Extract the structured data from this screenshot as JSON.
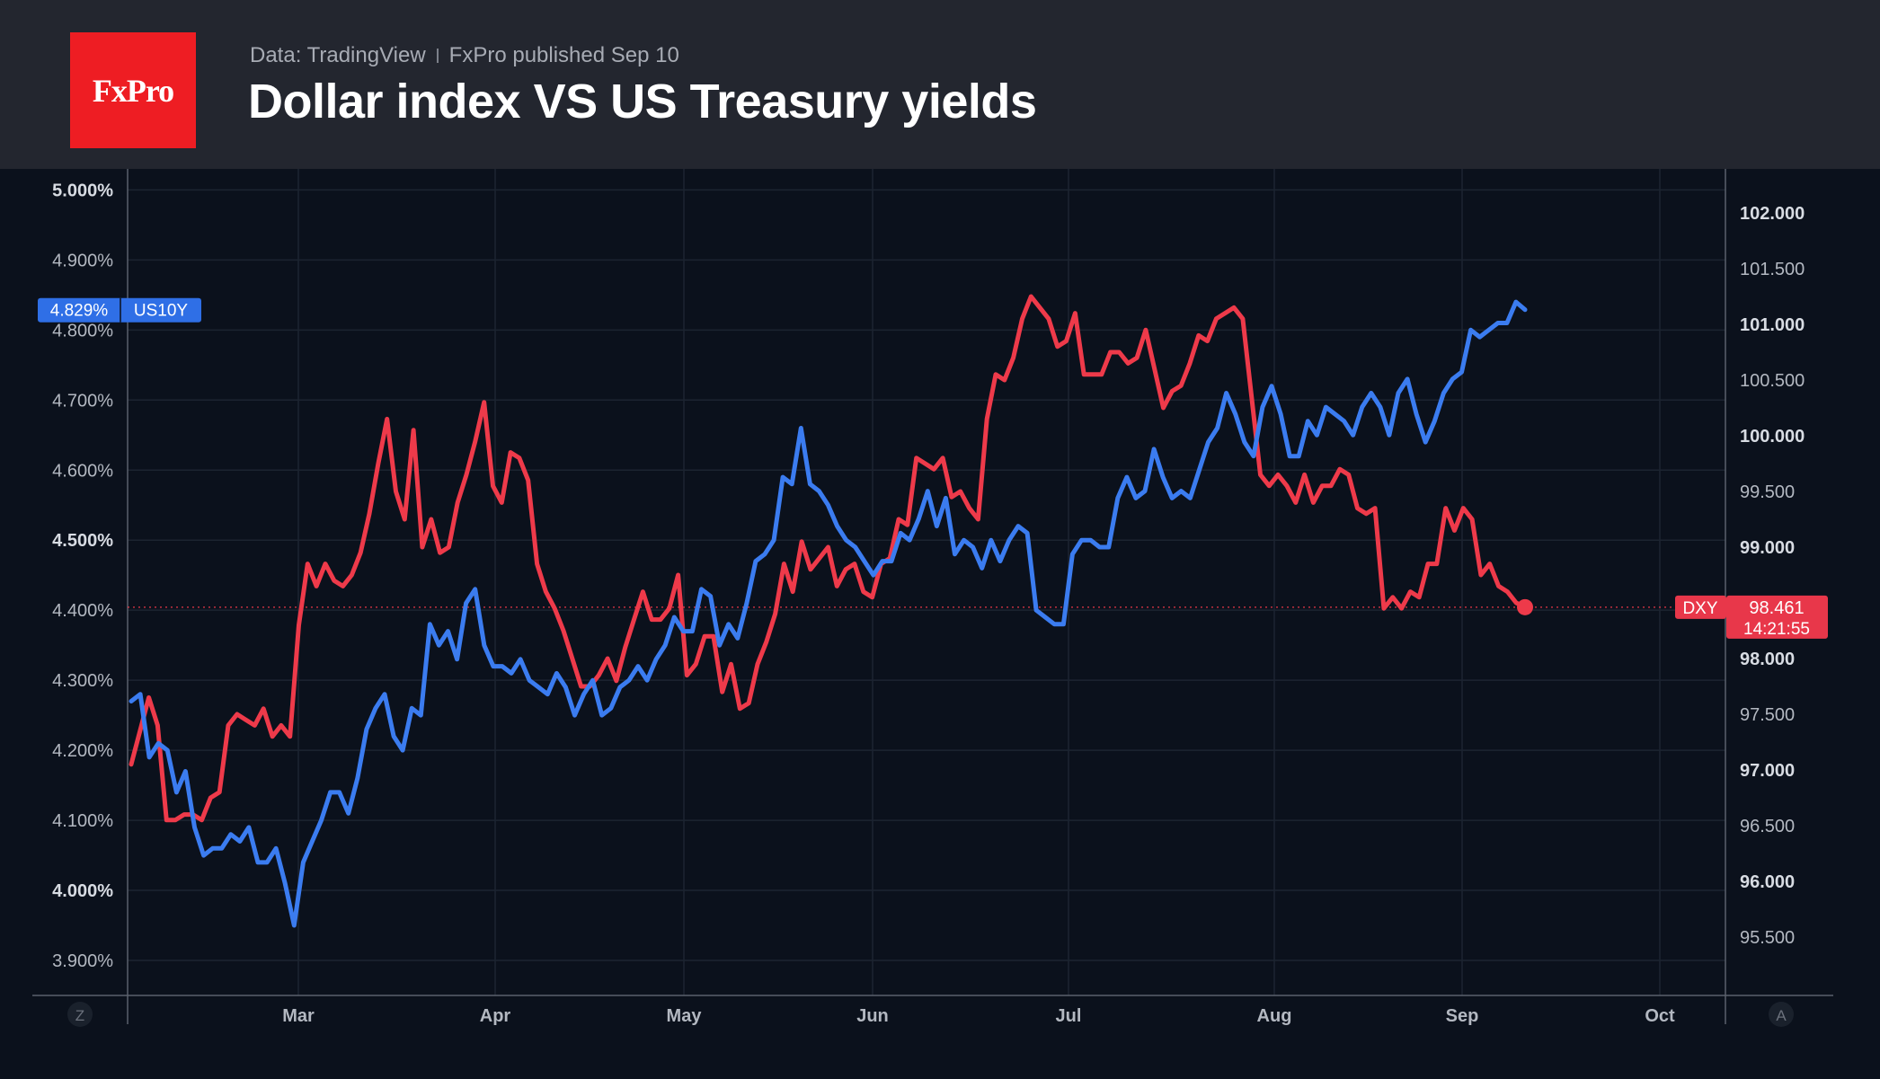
{
  "brand": {
    "logo_text": "FxPro",
    "logo_color": "#ee1d23"
  },
  "header": {
    "source": "Data: TradingView",
    "published": "FxPro published Sep 10",
    "title": "Dollar index VS US Treasury yields"
  },
  "chart_data": {
    "type": "line",
    "title": "Dollar index VS US Treasury yields",
    "x_labels": [
      "Mar",
      "Apr",
      "May",
      "Jun",
      "Jul",
      "Aug",
      "Sep",
      "Oct"
    ],
    "left_axis": {
      "ticks": [
        "5.000%",
        "4.900%",
        "4.800%",
        "4.700%",
        "4.600%",
        "4.500%",
        "4.400%",
        "4.300%",
        "4.200%",
        "4.100%",
        "4.000%",
        "3.900%"
      ],
      "range": [
        3.85,
        5.03
      ]
    },
    "right_axis": {
      "ticks": [
        "102.000",
        "101.500",
        "101.000",
        "100.500",
        "100.000",
        "99.500",
        "99.000",
        "98.000",
        "97.500",
        "97.000",
        "96.500",
        "96.000",
        "95.500"
      ],
      "range": [
        95.1,
        102.7
      ]
    },
    "grid": true,
    "series": [
      {
        "name": "US10Y",
        "axis": "left",
        "color": "#3b7cf0",
        "last_label": "4.829%",
        "values": [
          4.27,
          4.28,
          4.19,
          4.21,
          4.2,
          4.14,
          4.17,
          4.09,
          4.05,
          4.06,
          4.06,
          4.08,
          4.07,
          4.09,
          4.04,
          4.04,
          4.06,
          4.01,
          3.95,
          4.04,
          4.07,
          4.1,
          4.14,
          4.14,
          4.11,
          4.16,
          4.23,
          4.26,
          4.28,
          4.22,
          4.2,
          4.26,
          4.25,
          4.38,
          4.35,
          4.37,
          4.33,
          4.41,
          4.43,
          4.35,
          4.32,
          4.32,
          4.31,
          4.33,
          4.3,
          4.29,
          4.28,
          4.31,
          4.29,
          4.25,
          4.28,
          4.3,
          4.25,
          4.26,
          4.29,
          4.3,
          4.32,
          4.3,
          4.33,
          4.35,
          4.39,
          4.37,
          4.37,
          4.43,
          4.42,
          4.35,
          4.38,
          4.36,
          4.41,
          4.47,
          4.48,
          4.5,
          4.59,
          4.58,
          4.66,
          4.58,
          4.57,
          4.55,
          4.52,
          4.5,
          4.49,
          4.47,
          4.45,
          4.47,
          4.47,
          4.51,
          4.5,
          4.53,
          4.57,
          4.52,
          4.56,
          4.48,
          4.5,
          4.49,
          4.46,
          4.5,
          4.47,
          4.5,
          4.52,
          4.51,
          4.4,
          4.39,
          4.38,
          4.38,
          4.48,
          4.5,
          4.5,
          4.49,
          4.49,
          4.56,
          4.59,
          4.56,
          4.57,
          4.63,
          4.59,
          4.56,
          4.57,
          4.56,
          4.6,
          4.64,
          4.66,
          4.71,
          4.68,
          4.64,
          4.62,
          4.69,
          4.72,
          4.68,
          4.62,
          4.62,
          4.67,
          4.65,
          4.69,
          4.68,
          4.67,
          4.65,
          4.69,
          4.71,
          4.69,
          4.65,
          4.71,
          4.73,
          4.68,
          4.64,
          4.67,
          4.71,
          4.73,
          4.74,
          4.8,
          4.79,
          4.8,
          4.81,
          4.81,
          4.84,
          4.829
        ]
      },
      {
        "name": "DXY",
        "axis": "right",
        "color": "#ee3a4a",
        "last_label": "98.461",
        "countdown": "14:21:55",
        "values": [
          97.05,
          97.35,
          97.65,
          97.4,
          96.55,
          96.55,
          96.6,
          96.6,
          96.55,
          96.75,
          96.8,
          97.4,
          97.5,
          97.45,
          97.4,
          97.55,
          97.3,
          97.4,
          97.3,
          98.3,
          98.85,
          98.65,
          98.85,
          98.7,
          98.65,
          98.75,
          98.95,
          99.3,
          99.75,
          100.15,
          99.5,
          99.25,
          100.05,
          99.0,
          99.25,
          98.95,
          99.0,
          99.4,
          99.65,
          99.95,
          100.3,
          99.55,
          99.4,
          99.85,
          99.8,
          99.6,
          98.85,
          98.6,
          98.45,
          98.25,
          98.0,
          97.75,
          97.75,
          97.85,
          98.0,
          97.8,
          98.1,
          98.35,
          98.6,
          98.35,
          98.35,
          98.45,
          98.75,
          97.85,
          97.95,
          98.2,
          98.2,
          97.7,
          97.95,
          97.55,
          97.6,
          97.95,
          98.15,
          98.4,
          98.85,
          98.6,
          99.05,
          98.8,
          98.9,
          99.0,
          98.65,
          98.8,
          98.85,
          98.6,
          98.55,
          98.85,
          98.9,
          99.25,
          99.2,
          99.8,
          99.75,
          99.7,
          99.8,
          99.45,
          99.5,
          99.35,
          99.25,
          100.15,
          100.55,
          100.5,
          100.7,
          101.05,
          101.25,
          101.15,
          101.05,
          100.8,
          100.85,
          101.1,
          100.55,
          100.55,
          100.55,
          100.75,
          100.75,
          100.65,
          100.7,
          100.95,
          100.6,
          100.25,
          100.4,
          100.45,
          100.65,
          100.9,
          100.85,
          101.05,
          101.1,
          101.15,
          101.05,
          100.35,
          99.65,
          99.55,
          99.65,
          99.55,
          99.4,
          99.65,
          99.4,
          99.55,
          99.55,
          99.7,
          99.65,
          99.35,
          99.3,
          99.35,
          98.45,
          98.55,
          98.45,
          98.6,
          98.55,
          98.85,
          98.85,
          99.35,
          99.15,
          99.35,
          99.25,
          98.75,
          98.85,
          98.65,
          98.6,
          98.5,
          98.461
        ]
      }
    ]
  },
  "chart_ui": {
    "left_scale_button": "Z",
    "right_scale_button": "A"
  }
}
